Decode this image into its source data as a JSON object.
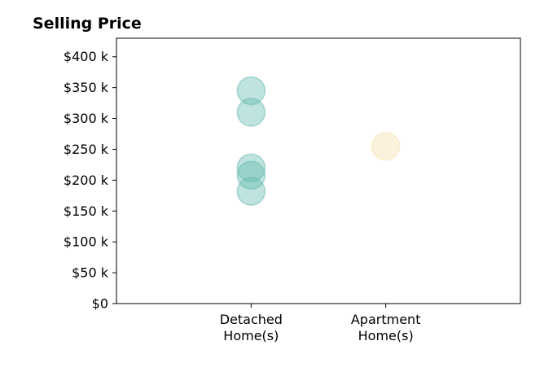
{
  "chart_data": {
    "type": "scatter",
    "title": "Selling Price",
    "xlabel": "",
    "ylabel": "",
    "categories": [
      [
        "Detached",
        "Home(s)"
      ],
      [
        "Apartment",
        "Home(s)"
      ]
    ],
    "x_range": [
      -1,
      2
    ],
    "ylim": [
      0,
      430000
    ],
    "y_ticks": [
      0,
      50000,
      100000,
      150000,
      200000,
      250000,
      300000,
      350000,
      400000
    ],
    "y_tick_labels": [
      "$0",
      "$50 k",
      "$100 k",
      "$150 k",
      "$200 k",
      "$250 k",
      "$300 k",
      "$350 k",
      "$400 k"
    ],
    "grid": false,
    "series": [
      {
        "category_index": 0,
        "color": "#5fb8ad",
        "values": [
          345000,
          310000,
          220000,
          208000,
          182000
        ]
      },
      {
        "category_index": 1,
        "color": "#f5dfab",
        "values": [
          255000
        ]
      }
    ],
    "marker_alpha": 0.4
  }
}
